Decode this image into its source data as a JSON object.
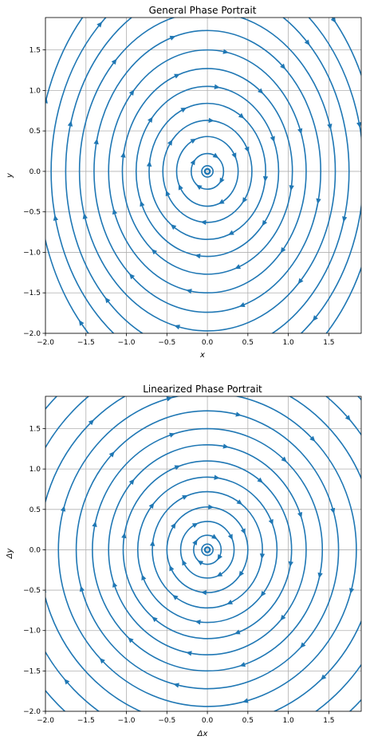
{
  "figure": {
    "line_color": "#1f77b4",
    "grid_color": "#b0b0b0"
  },
  "chart_data": [
    {
      "type": "streamplot",
      "title": "General Phase Portrait",
      "xlabel": "x",
      "ylabel": "y",
      "xlim": [
        -2.0,
        1.9
      ],
      "ylim": [
        -2.0,
        1.9
      ],
      "xticks": [
        -2.0,
        -1.5,
        -1.0,
        -0.5,
        0.0,
        0.5,
        1.0,
        1.5
      ],
      "xtick_labels": [
        "−2.0",
        "−1.5",
        "−1.0",
        "−0.5",
        "0.0",
        "0.5",
        "1.0",
        "1.5"
      ],
      "yticks": [
        -2.0,
        -1.5,
        -1.0,
        -0.5,
        0.0,
        0.5,
        1.0,
        1.5
      ],
      "ytick_labels": [
        "−2.0",
        "−1.5",
        "−1.0",
        "−0.5",
        "0.0",
        "0.5",
        "1.0",
        "1.5"
      ],
      "grid": true,
      "equilibrium": [
        0.0,
        0.0
      ],
      "orbit_direction": "clockwise",
      "orbits": [
        {
          "rx": 0.07,
          "ry": 0.07
        },
        {
          "rx": 0.2,
          "ry": 0.22
        },
        {
          "rx": 0.38,
          "ry": 0.43
        },
        {
          "rx": 0.55,
          "ry": 0.63
        },
        {
          "rx": 0.72,
          "ry": 0.84
        },
        {
          "rx": 0.88,
          "ry": 1.05
        },
        {
          "rx": 1.05,
          "ry": 1.27
        },
        {
          "rx": 1.22,
          "ry": 1.5
        },
        {
          "rx": 1.4,
          "ry": 1.74
        },
        {
          "rx": 1.58,
          "ry": 1.97
        },
        {
          "rx": 1.75,
          "ry": 2.25
        },
        {
          "rx": 1.93,
          "ry": 2.5
        },
        {
          "rx": 2.1,
          "ry": 2.8
        }
      ]
    },
    {
      "type": "streamplot",
      "title": "Linearized Phase Portrait",
      "xlabel": "Δx",
      "ylabel": "Δy",
      "xlim": [
        -2.0,
        1.9
      ],
      "ylim": [
        -2.0,
        1.9
      ],
      "xticks": [
        -2.0,
        -1.5,
        -1.0,
        -0.5,
        0.0,
        0.5,
        1.0,
        1.5
      ],
      "xtick_labels": [
        "−2.0",
        "−1.5",
        "−1.0",
        "−0.5",
        "0.0",
        "0.5",
        "1.0",
        "1.5"
      ],
      "yticks": [
        -2.0,
        -1.5,
        -1.0,
        -0.5,
        0.0,
        0.5,
        1.0,
        1.5
      ],
      "ytick_labels": [
        "−2.0",
        "−1.5",
        "−1.0",
        "−0.5",
        "0.0",
        "0.5",
        "1.0",
        "1.5"
      ],
      "grid": true,
      "equilibrium": [
        0.0,
        0.0
      ],
      "orbit_direction": "clockwise",
      "orbits": [
        {
          "rx": 0.07,
          "ry": 0.07
        },
        {
          "rx": 0.17,
          "ry": 0.18
        },
        {
          "rx": 0.33,
          "ry": 0.35
        },
        {
          "rx": 0.5,
          "ry": 0.53
        },
        {
          "rx": 0.68,
          "ry": 0.72
        },
        {
          "rx": 0.86,
          "ry": 0.9
        },
        {
          "rx": 1.04,
          "ry": 1.1
        },
        {
          "rx": 1.22,
          "ry": 1.3
        },
        {
          "rx": 1.42,
          "ry": 1.5
        },
        {
          "rx": 1.62,
          "ry": 1.72
        },
        {
          "rx": 1.84,
          "ry": 1.94
        },
        {
          "rx": 2.08,
          "ry": 2.18
        },
        {
          "rx": 2.34,
          "ry": 2.44
        },
        {
          "rx": 2.62,
          "ry": 2.7
        }
      ]
    }
  ]
}
